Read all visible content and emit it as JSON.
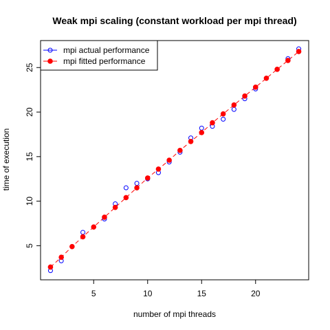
{
  "chart_data": {
    "type": "scatter",
    "title": "Weak mpi scaling (constant workload per mpi thread)",
    "xlabel": "number of mpi threads",
    "ylabel": "time of execution",
    "xlim": [
      0.08,
      24.92
    ],
    "ylim": [
      1.17,
      28.03
    ],
    "xticks": [
      5,
      10,
      15,
      20
    ],
    "yticks": [
      5,
      10,
      15,
      20,
      25
    ],
    "legend_position": "top-left",
    "grid": false,
    "series": [
      {
        "name": "mpi actual performance",
        "color": "#0000ff",
        "marker": "open-circle",
        "line": false,
        "x": [
          1,
          2,
          3,
          4,
          5,
          6,
          7,
          8,
          9,
          10,
          11,
          12,
          13,
          14,
          15,
          16,
          17,
          18,
          19,
          20,
          21,
          22,
          23,
          24
        ],
        "y": [
          2.2,
          3.3,
          4.9,
          6.5,
          7.1,
          8.0,
          9.7,
          11.5,
          12.0,
          12.5,
          13.2,
          14.4,
          15.5,
          17.1,
          18.2,
          18.4,
          19.2,
          20.3,
          21.5,
          22.6,
          23.8,
          24.8,
          26.0,
          27.1
        ]
      },
      {
        "name": "mpi fitted performance",
        "color": "#ff0000",
        "marker": "filled-circle",
        "line": "dashed",
        "x": [
          1,
          2,
          3,
          4,
          5,
          6,
          7,
          8,
          9,
          10,
          11,
          12,
          13,
          14,
          15,
          16,
          17,
          18,
          19,
          20,
          21,
          22,
          23,
          24
        ],
        "y": [
          2.6,
          3.7,
          4.9,
          6.0,
          7.1,
          8.2,
          9.3,
          10.4,
          11.5,
          12.6,
          13.6,
          14.6,
          15.7,
          16.7,
          17.7,
          18.8,
          19.8,
          20.8,
          21.8,
          22.8,
          23.8,
          24.8,
          25.8,
          26.8
        ]
      }
    ]
  }
}
